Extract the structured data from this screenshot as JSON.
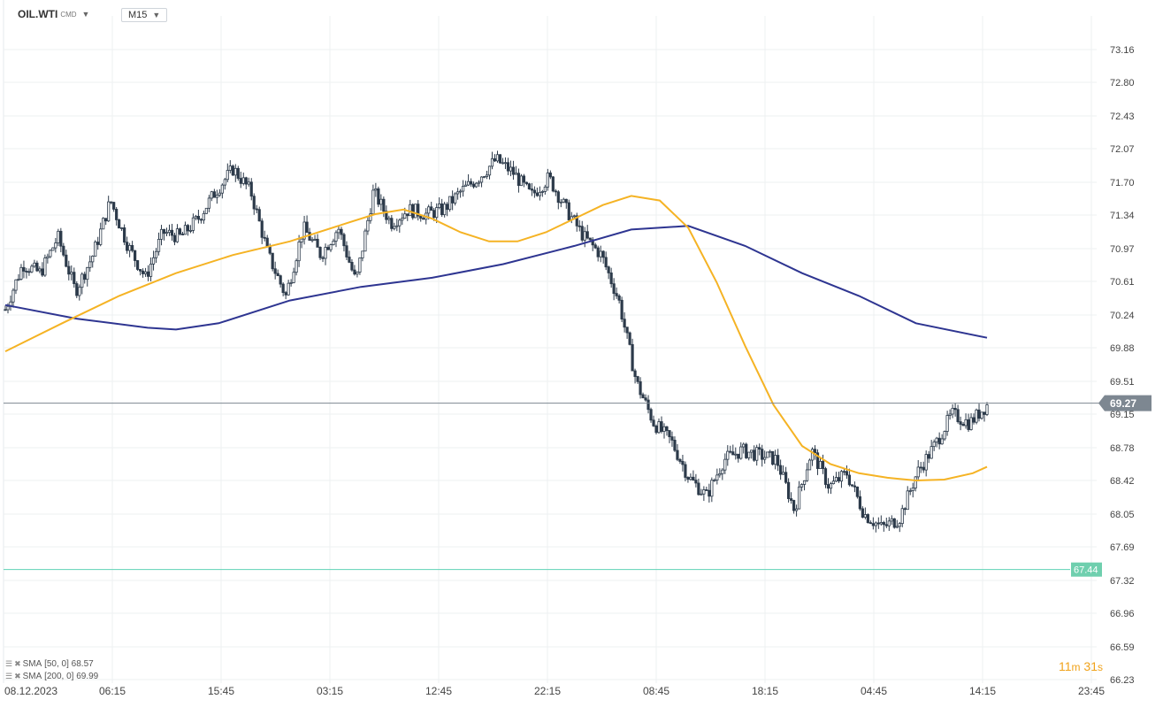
{
  "header": {
    "symbol": "OIL.WTI",
    "symbol_suffix": "CMD",
    "timeframe": "M15"
  },
  "legend": [
    {
      "label": "SMA",
      "params": "[50, 0]",
      "value": "68.57"
    },
    {
      "label": "SMA",
      "params": "[200, 0]",
      "value": "69.99"
    }
  ],
  "countdown": {
    "minutes": "11",
    "minutes_unit": "m",
    "seconds": "31",
    "seconds_unit": "s"
  },
  "colors": {
    "candle": "#2c3a4a",
    "sma50": "#f5b324",
    "sma200": "#2e3591",
    "price_line": "#7d8791",
    "level_line": "#5fd3b6",
    "level_badge": "#6fcfae",
    "price_badge": "#7d8791"
  },
  "chart_data": {
    "type": "candlestick",
    "timeframe": "M15",
    "x_tick_labels": [
      "08.12.2023",
      "06:15",
      "15:45",
      "03:15",
      "12:45",
      "22:15",
      "08:45",
      "18:15",
      "04:45",
      "14:15",
      "23:45"
    ],
    "y_tick_labels": [
      "73.16",
      "72.80",
      "72.43",
      "72.07",
      "71.70",
      "71.34",
      "70.97",
      "70.61",
      "70.24",
      "69.88",
      "69.51",
      "69.15",
      "68.78",
      "68.42",
      "68.05",
      "67.69",
      "67.32",
      "66.96",
      "66.59",
      "66.23"
    ],
    "ylim": [
      66.23,
      73.16
    ],
    "current_price": "69.27",
    "level_price": "67.44",
    "close_path": [
      [
        0,
        70.3
      ],
      [
        1,
        70.8
      ],
      [
        2,
        70.7
      ],
      [
        3,
        71.1
      ],
      [
        4,
        70.5
      ],
      [
        5,
        70.9
      ],
      [
        6,
        71.5
      ],
      [
        7,
        71.0
      ],
      [
        8,
        70.65
      ],
      [
        9,
        71.15
      ],
      [
        10,
        71.1
      ],
      [
        11,
        71.3
      ],
      [
        12,
        71.6
      ],
      [
        13,
        71.85
      ],
      [
        14,
        71.6
      ],
      [
        15,
        70.9
      ],
      [
        16,
        70.45
      ],
      [
        17,
        71.2
      ],
      [
        18,
        70.9
      ],
      [
        19,
        71.2
      ],
      [
        20,
        70.6
      ],
      [
        21,
        71.6
      ],
      [
        22,
        71.25
      ],
      [
        23,
        71.4
      ],
      [
        24,
        71.35
      ],
      [
        25,
        71.4
      ],
      [
        26,
        71.6
      ],
      [
        27,
        71.75
      ],
      [
        28,
        71.95
      ],
      [
        29,
        71.8
      ],
      [
        30,
        71.55
      ],
      [
        31,
        71.75
      ],
      [
        32,
        71.4
      ],
      [
        33,
        71.1
      ],
      [
        34,
        70.9
      ],
      [
        35,
        70.4
      ],
      [
        36,
        69.5
      ],
      [
        37,
        69.05
      ],
      [
        38,
        68.85
      ],
      [
        39,
        68.45
      ],
      [
        40,
        68.25
      ],
      [
        41,
        68.65
      ],
      [
        42,
        68.75
      ],
      [
        43,
        68.7
      ],
      [
        44,
        68.65
      ],
      [
        45,
        68.1
      ],
      [
        46,
        68.75
      ],
      [
        47,
        68.35
      ],
      [
        48,
        68.5
      ],
      [
        49,
        68.05
      ],
      [
        50,
        67.9
      ],
      [
        51,
        68.0
      ],
      [
        52,
        68.5
      ],
      [
        53,
        68.8
      ],
      [
        54,
        69.15
      ],
      [
        55,
        69.05
      ],
      [
        56,
        69.25
      ]
    ],
    "sma50_path": [
      [
        0,
        69.84
      ],
      [
        4,
        70.15
      ],
      [
        8,
        70.45
      ],
      [
        12,
        70.7
      ],
      [
        16,
        70.9
      ],
      [
        20,
        71.05
      ],
      [
        24,
        71.25
      ],
      [
        26,
        71.35
      ],
      [
        28,
        71.4
      ],
      [
        30,
        71.3
      ],
      [
        32,
        71.15
      ],
      [
        34,
        71.05
      ],
      [
        36,
        71.05
      ],
      [
        38,
        71.15
      ],
      [
        40,
        71.3
      ],
      [
        42,
        71.45
      ],
      [
        44,
        71.55
      ],
      [
        46,
        71.5
      ],
      [
        48,
        71.2
      ],
      [
        50,
        70.6
      ],
      [
        52,
        69.9
      ],
      [
        54,
        69.25
      ],
      [
        56,
        68.8
      ],
      [
        58,
        68.6
      ],
      [
        60,
        68.5
      ],
      [
        62,
        68.45
      ],
      [
        64,
        68.42
      ],
      [
        66,
        68.43
      ],
      [
        68,
        68.5
      ],
      [
        69,
        68.57
      ]
    ],
    "sma200_path": [
      [
        0,
        70.35
      ],
      [
        5,
        70.2
      ],
      [
        10,
        70.1
      ],
      [
        12,
        70.08
      ],
      [
        15,
        70.15
      ],
      [
        20,
        70.4
      ],
      [
        25,
        70.55
      ],
      [
        30,
        70.65
      ],
      [
        35,
        70.8
      ],
      [
        40,
        71.0
      ],
      [
        44,
        71.18
      ],
      [
        48,
        71.22
      ],
      [
        52,
        71.0
      ],
      [
        56,
        70.7
      ],
      [
        60,
        70.45
      ],
      [
        64,
        70.15
      ],
      [
        69,
        69.99
      ]
    ],
    "sma_x_max": 69
  }
}
